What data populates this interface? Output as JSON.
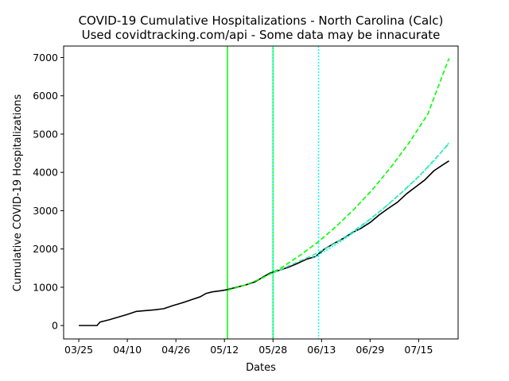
{
  "chart_data": {
    "type": "line",
    "title": "COVID-19 Cumulative Hospitalizations - North Carolina (Calc)",
    "subtitle": "Used covidtracking.com/api - Some data may be innacurate",
    "xlabel": "Dates",
    "ylabel": "Cumulative COVID-19 Hospitalizations",
    "xlim": [
      "2020-03-20",
      "2020-07-28"
    ],
    "ylim": [
      -350,
      7300
    ],
    "x_ticks": [
      "2020-03-25",
      "2020-04-10",
      "2020-04-26",
      "2020-05-12",
      "2020-05-28",
      "2020-06-13",
      "2020-06-29",
      "2020-07-15"
    ],
    "x_tick_labels": [
      "03/25",
      "04/10",
      "04/26",
      "05/12",
      "05/28",
      "06/13",
      "06/29",
      "07/15"
    ],
    "y_ticks": [
      0,
      1000,
      2000,
      3000,
      4000,
      5000,
      6000,
      7000
    ],
    "y_tick_labels": [
      "0",
      "1000",
      "2000",
      "3000",
      "4000",
      "5000",
      "6000",
      "7000"
    ],
    "grid": false,
    "legend": "none",
    "series": [
      {
        "color": "#000000",
        "style": "solid",
        "points": [
          [
            "2020-03-25",
            0
          ],
          [
            "2020-03-31",
            0
          ],
          [
            "2020-04-01",
            90
          ],
          [
            "2020-04-04",
            150
          ],
          [
            "2020-04-07",
            220
          ],
          [
            "2020-04-10",
            290
          ],
          [
            "2020-04-13",
            370
          ],
          [
            "2020-04-16",
            390
          ],
          [
            "2020-04-19",
            410
          ],
          [
            "2020-04-22",
            440
          ],
          [
            "2020-04-25",
            520
          ],
          [
            "2020-04-28",
            590
          ],
          [
            "2020-05-01",
            670
          ],
          [
            "2020-05-04",
            750
          ],
          [
            "2020-05-06",
            840
          ],
          [
            "2020-05-08",
            880
          ],
          [
            "2020-05-11",
            910
          ],
          [
            "2020-05-13",
            940
          ],
          [
            "2020-05-16",
            1000
          ],
          [
            "2020-05-19",
            1060
          ],
          [
            "2020-05-22",
            1140
          ],
          [
            "2020-05-25",
            1280
          ],
          [
            "2020-05-27",
            1370
          ],
          [
            "2020-05-30",
            1440
          ],
          [
            "2020-06-02",
            1520
          ],
          [
            "2020-06-05",
            1620
          ],
          [
            "2020-06-08",
            1730
          ],
          [
            "2020-06-11",
            1800
          ],
          [
            "2020-06-14",
            2000
          ],
          [
            "2020-06-17",
            2140
          ],
          [
            "2020-06-20",
            2270
          ],
          [
            "2020-06-23",
            2420
          ],
          [
            "2020-06-26",
            2540
          ],
          [
            "2020-06-29",
            2690
          ],
          [
            "2020-07-02",
            2890
          ],
          [
            "2020-07-05",
            3060
          ],
          [
            "2020-07-08",
            3220
          ],
          [
            "2020-07-11",
            3440
          ],
          [
            "2020-07-14",
            3620
          ],
          [
            "2020-07-17",
            3800
          ],
          [
            "2020-07-20",
            4040
          ],
          [
            "2020-07-23",
            4200
          ],
          [
            "2020-07-25",
            4300
          ]
        ]
      },
      {
        "color": "#00ff00",
        "style": "dashed",
        "points": [
          [
            "2020-05-13",
            920
          ],
          [
            "2020-05-19",
            1060
          ],
          [
            "2020-05-25",
            1260
          ],
          [
            "2020-05-31",
            1520
          ],
          [
            "2020-06-06",
            1840
          ],
          [
            "2020-06-12",
            2190
          ],
          [
            "2020-06-18",
            2600
          ],
          [
            "2020-06-24",
            3060
          ],
          [
            "2020-06-30",
            3570
          ],
          [
            "2020-07-06",
            4150
          ],
          [
            "2020-07-12",
            4790
          ],
          [
            "2020-07-18",
            5520
          ],
          [
            "2020-07-25",
            6980
          ]
        ]
      },
      {
        "color": "#00ffff",
        "style": "dotted",
        "points": [
          [
            "2020-06-10",
            1760
          ],
          [
            "2020-06-15",
            1980
          ],
          [
            "2020-06-20",
            2230
          ],
          [
            "2020-06-25",
            2510
          ],
          [
            "2020-06-30",
            2830
          ],
          [
            "2020-07-05",
            3160
          ],
          [
            "2020-07-10",
            3510
          ],
          [
            "2020-07-15",
            3880
          ],
          [
            "2020-07-20",
            4290
          ],
          [
            "2020-07-25",
            4780
          ]
        ]
      },
      {
        "color": "#40e0a0",
        "style": "dashed",
        "points": [
          [
            "2020-05-28",
            1370
          ],
          [
            "2020-06-04",
            1620
          ],
          [
            "2020-06-10",
            1830
          ],
          [
            "2020-06-16",
            2080
          ],
          [
            "2020-06-22",
            2380
          ],
          [
            "2020-06-28",
            2720
          ],
          [
            "2020-07-04",
            3100
          ],
          [
            "2020-07-10",
            3520
          ],
          [
            "2020-07-16",
            3970
          ],
          [
            "2020-07-25",
            4750
          ]
        ]
      }
    ],
    "vertical_lines": [
      {
        "x": "2020-05-13",
        "color": "#00ff00",
        "style": "solid"
      },
      {
        "x": "2020-05-28",
        "color": "#00ff00",
        "style": "solid"
      },
      {
        "x": "2020-05-28",
        "color": "#00ffff",
        "style": "dotted"
      },
      {
        "x": "2020-06-12",
        "color": "#00ffff",
        "style": "dotted"
      }
    ]
  }
}
